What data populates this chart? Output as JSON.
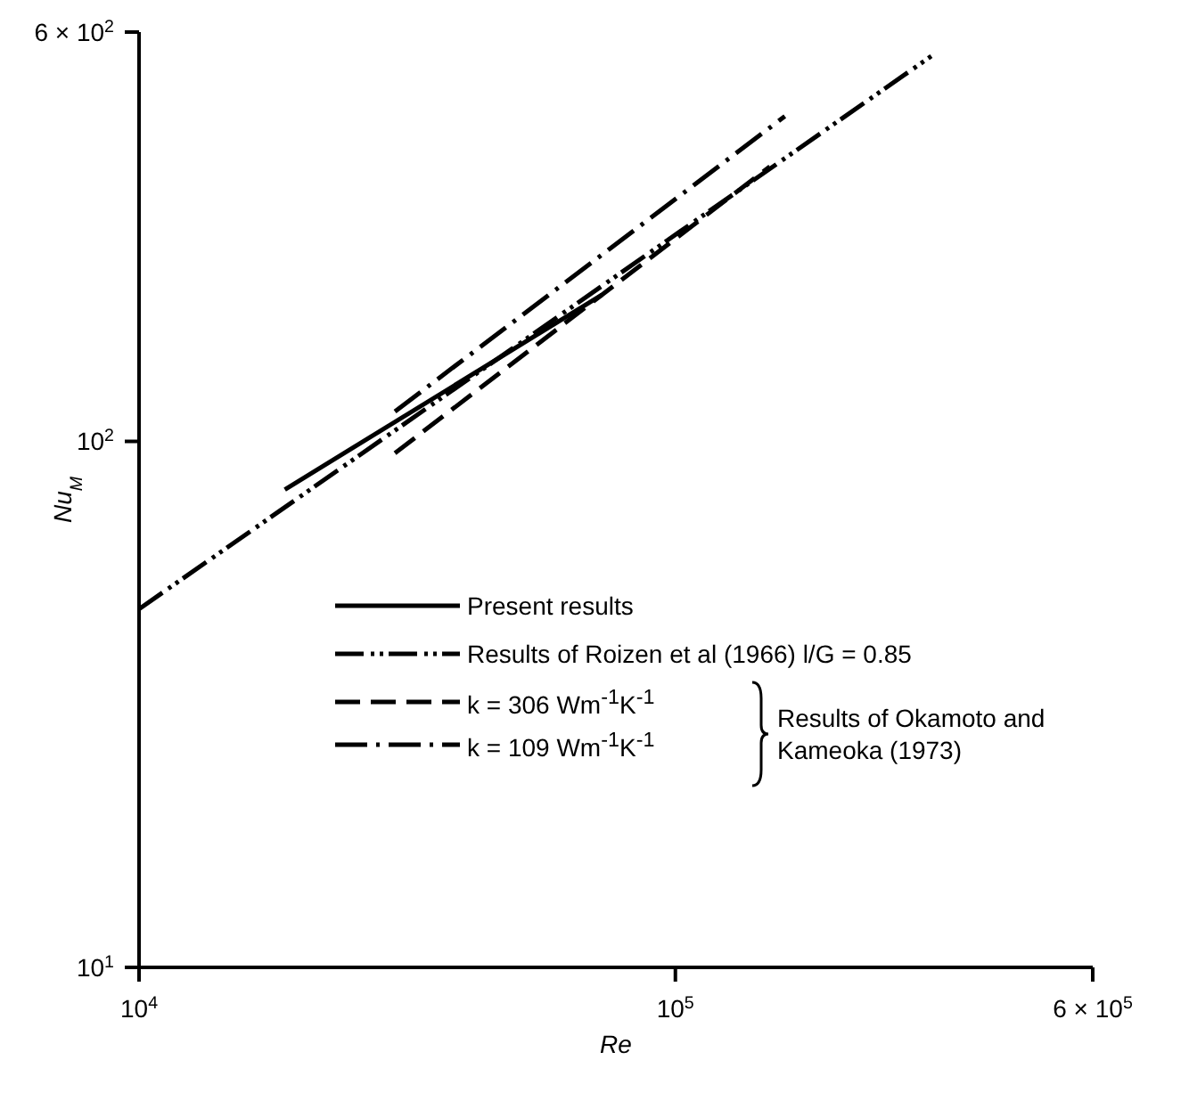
{
  "chart_data": {
    "type": "line",
    "xlabel": "Re",
    "ylabel": "Nu$_{M}$",
    "xlim": [
      10000,
      600000
    ],
    "ylim": [
      10,
      600
    ],
    "xticks": [
      {
        "value": 10000,
        "label": "10$^{4}$"
      },
      {
        "value": 100000,
        "label": "10$^{5}$"
      },
      {
        "value": 600000,
        "label": "6 × 10$^{5}$"
      }
    ],
    "yticks": [
      {
        "value": 10,
        "label": "10$^{1}$"
      },
      {
        "value": 100,
        "label": "10$^{2}$"
      },
      {
        "value": 600,
        "label": "6 × 10$^{2}$"
      }
    ],
    "log": "xy",
    "legend": "bottom",
    "marker": "none",
    "series": [
      {
        "name": "Present results",
        "color": "#000000",
        "line_style": "solid",
        "x": [
          18700,
          73000
        ],
        "values": [
          81,
          190
        ]
      },
      {
        "name": "Results of Roizen et al (1966) l/G = 0.85",
        "color": "#000000",
        "line_style": "dashed",
        "x": [
          10000,
          300000
        ],
        "values": [
          48,
          540
        ]
      },
      {
        "name": "k = 306 Wm$^{-1}$K$^{-1}$",
        "color": "#000000",
        "line_style": "dashed",
        "x": [
          30000,
          150000
        ],
        "values": [
          95,
          333
        ]
      },
      {
        "name": "k = 109 Wm$^{-1}$K$^{-1}$",
        "color": "#000000",
        "line_style": "dashed",
        "x": [
          30000,
          160000
        ],
        "values": [
          114,
          415
        ]
      }
    ],
    "annotations": [
      "Results of Okamoto and Kameoka (1973)"
    ]
  }
}
